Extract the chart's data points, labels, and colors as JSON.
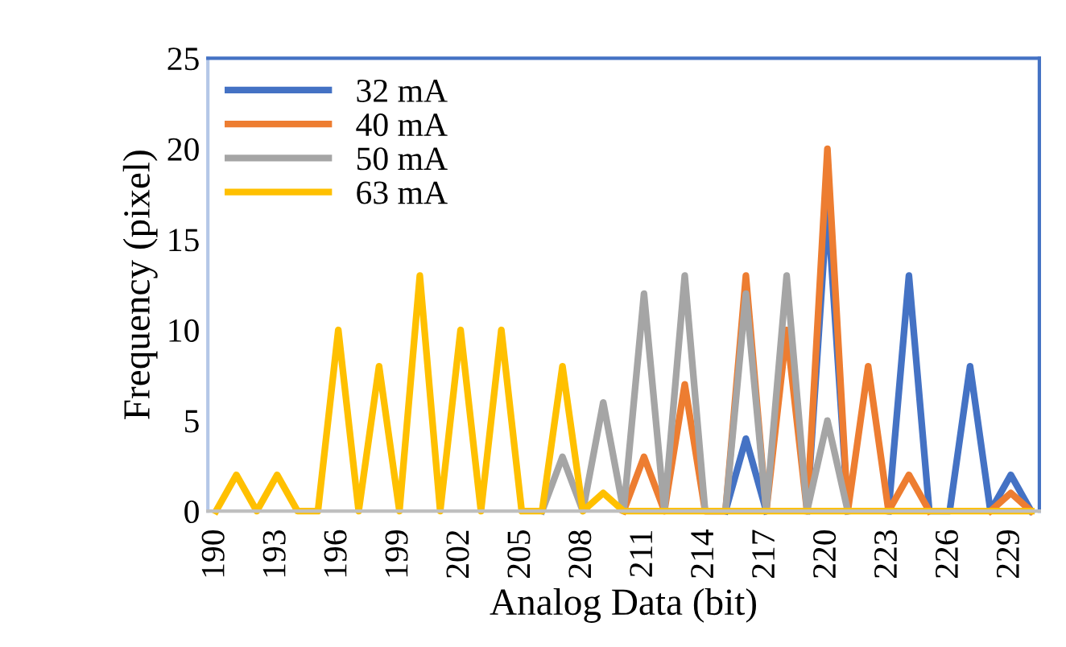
{
  "chart_data": {
    "type": "line",
    "xlabel": "Analog Data (bit)",
    "ylabel": "Frequency (pixel)",
    "categories": [
      "190",
      null,
      null,
      "193",
      null,
      null,
      "196",
      null,
      null,
      "199",
      null,
      null,
      "202",
      null,
      null,
      "205",
      null,
      null,
      "208",
      null,
      null,
      "211",
      null,
      null,
      "214",
      null,
      null,
      "217",
      null,
      null,
      "220",
      null,
      null,
      "223",
      null,
      null,
      "226",
      null,
      null,
      "229",
      null
    ],
    "series": [
      {
        "name": "32 mA",
        "color": "#4472c4",
        "values": [
          null,
          null,
          null,
          null,
          null,
          null,
          null,
          null,
          null,
          null,
          null,
          null,
          null,
          null,
          null,
          null,
          null,
          null,
          null,
          null,
          null,
          null,
          null,
          null,
          null,
          0,
          4,
          0,
          null,
          0,
          17,
          0,
          null,
          0,
          13,
          0,
          0,
          8,
          0,
          2,
          0
        ]
      },
      {
        "name": "40 mA",
        "color": "#ed7d31",
        "values": [
          null,
          null,
          null,
          null,
          null,
          null,
          null,
          null,
          null,
          null,
          null,
          null,
          null,
          null,
          null,
          null,
          null,
          null,
          null,
          null,
          0,
          3,
          0,
          7,
          0,
          0,
          13,
          0,
          10,
          0,
          20,
          0,
          8,
          0,
          2,
          0,
          null,
          null,
          0,
          1,
          0
        ]
      },
      {
        "name": "50 mA",
        "color": "#a5a5a5",
        "values": [
          null,
          null,
          null,
          null,
          null,
          null,
          null,
          null,
          null,
          null,
          null,
          null,
          null,
          null,
          null,
          null,
          0,
          3,
          0,
          6,
          0,
          12,
          0,
          13,
          0,
          0,
          12,
          0,
          13,
          0,
          5,
          0,
          null,
          null,
          null,
          null,
          null,
          null,
          null,
          null,
          null
        ]
      },
      {
        "name": "63 mA",
        "color": "#ffc000",
        "values": [
          0,
          2,
          0,
          2,
          0,
          0,
          10,
          0,
          8,
          0,
          13,
          0,
          10,
          0,
          10,
          0,
          0,
          8,
          0,
          1,
          0,
          0,
          0,
          0,
          0,
          0,
          0,
          0,
          0,
          0,
          0,
          0,
          0,
          0,
          0,
          0,
          0,
          0,
          0,
          0,
          0
        ]
      }
    ],
    "ylim": [
      0,
      25
    ],
    "yticks": [
      0,
      5,
      10,
      15,
      20,
      25
    ],
    "grid": false,
    "legend": "top left",
    "marker": "none",
    "line_style": "solid"
  }
}
